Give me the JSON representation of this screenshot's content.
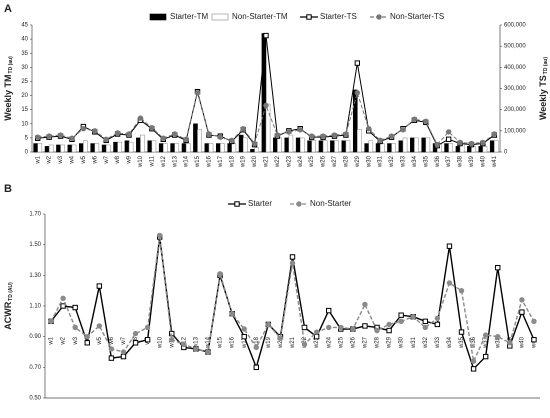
{
  "chart_data": [
    {
      "type": "combo",
      "title": "A",
      "y_label": "Weekly TM",
      "y_label_sub": "TD (au)",
      "y2_label": "Weekly TS",
      "y2_label_sub": "TD (au)",
      "categories": [
        "w1",
        "w2",
        "w3",
        "w4",
        "w5",
        "w6",
        "w7",
        "w8",
        "w9",
        "w10",
        "w11",
        "w12",
        "w13",
        "w14",
        "w15",
        "w16",
        "w17",
        "w18",
        "w19",
        "w20",
        "w21",
        "w22",
        "w23",
        "w24",
        "w25",
        "w26",
        "w27",
        "w28",
        "w29",
        "w30",
        "w31",
        "w32",
        "w33",
        "w34",
        "w35",
        "w36",
        "w37",
        "w38",
        "w39",
        "w40",
        "w41"
      ],
      "ylim": [
        0,
        45
      ],
      "yticks": [
        0,
        5,
        10,
        15,
        20,
        25,
        30,
        35,
        40,
        45
      ],
      "y2lim": [
        0,
        600000
      ],
      "y2ticks": [
        0,
        {
          "value": 100000,
          "label": "100,000"
        },
        {
          "value": 200000,
          "label": "200,000"
        },
        {
          "value": 300000,
          "label": "300,000"
        },
        {
          "value": 400000,
          "label": "400,000"
        },
        {
          "value": 500000,
          "label": "500,000"
        },
        {
          "value": 600000,
          "label": "600,000"
        }
      ],
      "series": [
        {
          "name": "Starter-TM",
          "kind": "bar",
          "color": "#000000",
          "edgecolor": "#000000",
          "values": [
            3,
            2,
            2.5,
            2.5,
            3,
            3,
            2.5,
            3.5,
            4,
            5,
            4,
            3,
            3,
            3,
            10,
            3,
            3,
            3,
            6,
            1,
            42,
            5,
            5,
            5,
            4,
            4,
            4,
            4,
            22,
            3,
            3,
            3,
            4,
            5,
            5,
            3,
            3,
            2,
            2,
            2,
            4
          ]
        },
        {
          "name": "Non-Starter-TM",
          "kind": "bar",
          "color": "#ffffff",
          "edgecolor": "#888888",
          "values": [
            3,
            2.5,
            2.5,
            2.5,
            4,
            3,
            2.5,
            3.5,
            3.5,
            6,
            4,
            3,
            3,
            3,
            8,
            3,
            3,
            3,
            5,
            1.5,
            17,
            5,
            6,
            5,
            4,
            4,
            4,
            4,
            8,
            4,
            3,
            3,
            5,
            5,
            5,
            3,
            3,
            3,
            2,
            2,
            4
          ]
        },
        {
          "name": "Starter-TS",
          "kind": "line",
          "axis": "y2",
          "color": "#000000",
          "marker": "square",
          "dash": false,
          "values": [
            65000,
            70000,
            75000,
            60000,
            120000,
            95000,
            55000,
            85000,
            80000,
            150000,
            110000,
            60000,
            80000,
            55000,
            285000,
            80000,
            75000,
            50000,
            105000,
            35000,
            550000,
            75000,
            100000,
            110000,
            70000,
            70000,
            75000,
            80000,
            420000,
            100000,
            50000,
            70000,
            110000,
            150000,
            140000,
            30000,
            60000,
            40000,
            35000,
            40000,
            80000
          ]
        },
        {
          "name": "Non-Starter-TS",
          "kind": "line",
          "axis": "y2",
          "color": "#777777",
          "marker": "circle",
          "dash": true,
          "values": [
            70000,
            75000,
            80000,
            65000,
            110000,
            100000,
            60000,
            90000,
            85000,
            160000,
            115000,
            65000,
            85000,
            60000,
            280000,
            85000,
            70000,
            55000,
            110000,
            40000,
            220000,
            80000,
            95000,
            105000,
            75000,
            75000,
            80000,
            85000,
            280000,
            110000,
            55000,
            75000,
            105000,
            155000,
            145000,
            35000,
            95000,
            45000,
            40000,
            45000,
            85000
          ]
        }
      ]
    },
    {
      "type": "line",
      "title": "B",
      "y_label": "ACWR",
      "y_label_sub": "TD (AU)",
      "categories": [
        "w1",
        "w2",
        "w3",
        "w4",
        "w5",
        "w6",
        "w7",
        "w8",
        "w9",
        "w10",
        "w11",
        "w12",
        "w13",
        "w14",
        "w15",
        "w16",
        "w17",
        "w18",
        "w19",
        "w20",
        "w21",
        "w22",
        "w23",
        "w24",
        "w25",
        "w26",
        "w27",
        "w28",
        "w29",
        "w30",
        "w31",
        "w32",
        "w33",
        "w34",
        "w35",
        "w36",
        "w37",
        "w38",
        "w39",
        "w40",
        "w41"
      ],
      "ylim": [
        0.5,
        1.7
      ],
      "yticks": [
        {
          "value": 0.5,
          "label": "0.50"
        },
        {
          "value": 0.7,
          "label": "0.70"
        },
        {
          "value": 0.9,
          "label": "0.90"
        },
        {
          "value": 1.1,
          "label": "1.10"
        },
        {
          "value": 1.3,
          "label": "1.30"
        },
        {
          "value": 1.5,
          "label": "1.50"
        },
        {
          "value": 1.7,
          "label": "1.70"
        }
      ],
      "series": [
        {
          "name": "Starter",
          "kind": "line",
          "color": "#000000",
          "marker": "square",
          "dash": false,
          "values": [
            1.0,
            1.1,
            1.09,
            0.86,
            1.23,
            0.76,
            0.77,
            0.86,
            0.88,
            1.55,
            0.92,
            0.83,
            0.82,
            0.8,
            1.3,
            1.05,
            0.9,
            0.7,
            0.98,
            0.9,
            1.42,
            0.96,
            0.9,
            1.07,
            0.95,
            0.95,
            0.97,
            0.96,
            0.94,
            1.04,
            1.03,
            1.0,
            0.98,
            1.49,
            0.93,
            0.69,
            0.77,
            1.35,
            0.84,
            1.06,
            0.88
          ]
        },
        {
          "name": "Non-Starter",
          "kind": "line",
          "color": "#8a8a8a",
          "marker": "circle",
          "dash": true,
          "values": [
            1.0,
            1.15,
            0.96,
            0.9,
            0.97,
            0.82,
            0.8,
            0.92,
            0.96,
            1.56,
            0.88,
            0.85,
            0.82,
            0.8,
            1.31,
            1.05,
            0.95,
            0.83,
            0.98,
            0.89,
            1.38,
            0.85,
            0.93,
            0.96,
            0.96,
            0.95,
            1.11,
            0.94,
            0.98,
            1.0,
            1.03,
            0.96,
            1.02,
            1.25,
            1.2,
            0.74,
            0.91,
            0.9,
            0.86,
            1.14,
            1.0
          ]
        }
      ]
    }
  ]
}
